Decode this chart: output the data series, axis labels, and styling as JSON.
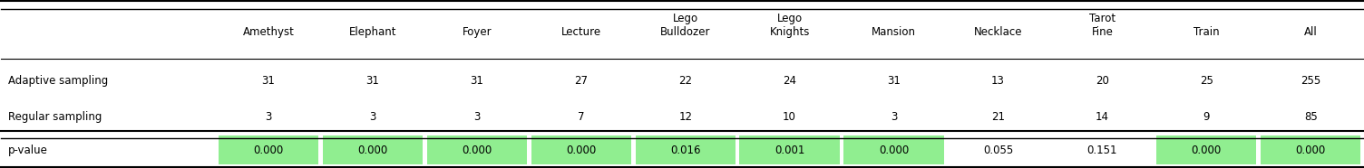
{
  "col_headers": [
    "Amethyst",
    "Elephant",
    "Foyer",
    "Lecture",
    "Lego\nBulldozer",
    "Lego\nKnights",
    "Mansion",
    "Necklace",
    "Tarot\nFine",
    "Train",
    "All"
  ],
  "row_labels": [
    "Adaptive sampling",
    "Regular sampling",
    "p-value"
  ],
  "adaptive": [
    "31",
    "31",
    "31",
    "27",
    "22",
    "24",
    "31",
    "13",
    "20",
    "25",
    "255"
  ],
  "regular": [
    "3",
    "3",
    "3",
    "7",
    "12",
    "10",
    "3",
    "21",
    "14",
    "9",
    "85"
  ],
  "pvalues": [
    "0.000",
    "0.000",
    "0.000",
    "0.000",
    "0.016",
    "0.001",
    "0.000",
    "0.055",
    "0.151",
    "0.000",
    "0.000"
  ],
  "pvalue_green": [
    true,
    true,
    true,
    true,
    true,
    true,
    true,
    false,
    false,
    true,
    true
  ],
  "green_color": "#90EE90",
  "figsize": [
    15.04,
    1.86
  ],
  "dpi": 100
}
